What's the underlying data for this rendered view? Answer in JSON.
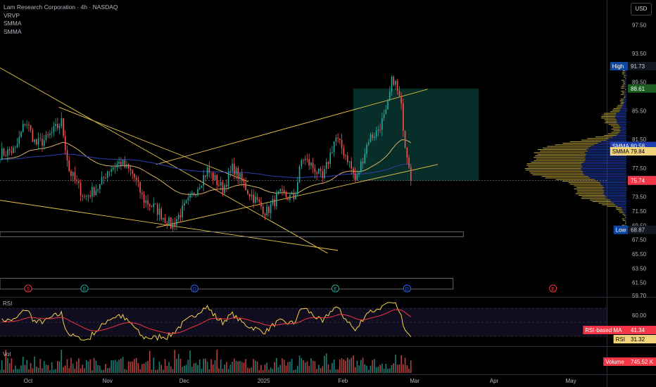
{
  "header": {
    "title": "Lam Research Corporation · 4h · NASDAQ",
    "indicators": [
      "VRVP",
      "SMMA",
      "SMMA"
    ]
  },
  "currency_button": "USD",
  "price_axis": {
    "ticks": [
      "97.50",
      "93.50",
      "89.50",
      "85.50",
      "81.50",
      "77.50",
      "73.50",
      "71.50",
      "69.50",
      "67.50",
      "65.50",
      "63.50",
      "61.50",
      "59.70"
    ]
  },
  "price_labels": [
    {
      "text": "High",
      "value": "91.73",
      "bg": "#131722",
      "fg": "#d1d4dc",
      "tagbg": "#0d47a1"
    },
    {
      "text": "",
      "value": "88.61",
      "bg": "#1b5e20",
      "fg": "#ffffff"
    },
    {
      "text": "SMMA",
      "value": "80.58",
      "bg": "#1e40af",
      "fg": "#ffffff"
    },
    {
      "text": "SMMA",
      "value": "79.84",
      "bg": "#f2d27a",
      "fg": "#000000"
    },
    {
      "text": "",
      "value": "75.81",
      "bg": "#f23645",
      "fg": "#ffffff"
    },
    {
      "text": "",
      "value": "75.75",
      "bg": "#1e53e5",
      "fg": "#ffffff"
    },
    {
      "text": "",
      "value": "75.74",
      "bg": "#f23645",
      "fg": "#ffffff"
    },
    {
      "text": "Low",
      "value": "68.87",
      "bg": "#131722",
      "fg": "#d1d4dc",
      "tagbg": "#0d47a1"
    }
  ],
  "rsi_pane": {
    "label": "RSI",
    "ticks": [
      "60.00",
      "40.00"
    ],
    "labels": [
      {
        "text": "RSI-based MA",
        "value": "41.34",
        "bg": "#f23645",
        "fg": "#ffffff"
      },
      {
        "text": "RSI",
        "value": "31.32",
        "bg": "#f2d27a",
        "fg": "#000000"
      }
    ]
  },
  "volume_pane": {
    "label": "Vol",
    "labels": [
      {
        "text": "Volume",
        "value": "745.52 K",
        "bg": "#f23645",
        "fg": "#ffffff"
      }
    ]
  },
  "time_axis": [
    "Oct",
    "Nov",
    "Dec",
    "2025",
    "Feb",
    "Mar",
    "Apr",
    "May"
  ],
  "event_markers": [
    {
      "letter": "S",
      "color": "#f23645",
      "date_index": 0
    },
    {
      "letter": "E",
      "color": "#26a69a",
      "date_index": 1
    },
    {
      "letter": "D",
      "color": "#2962ff",
      "date_index": 2
    },
    {
      "letter": "E",
      "color": "#26a69a",
      "date_index": 3
    },
    {
      "letter": "D",
      "color": "#2962ff",
      "date_index": 4
    },
    {
      "letter": "E",
      "color": "#f23645",
      "date_index": 5
    }
  ],
  "colors": {
    "up": "#26a69a",
    "down": "#ef5350",
    "smma_fast": "#d9b26a",
    "smma_slow": "#2b3fb5",
    "trend": "#e8c547",
    "rsi": "#f7d24a",
    "rsi_ma": "#f23645",
    "profile_blue": "#2046c8",
    "profile_yellow": "#e8c547"
  },
  "chart_data": [
    {
      "type": "candlestick",
      "title": "Lam Research Corporation · 4h · NASDAQ",
      "ylim": [
        59.7,
        99.0
      ],
      "y_scale": "linear",
      "x": [
        "2024-09-20",
        "2025-05-15"
      ],
      "anchors": [
        [
          "2024-09-20",
          79.5
        ],
        [
          "2024-09-26",
          80.0
        ],
        [
          "2024-09-30",
          84.2
        ],
        [
          "2024-10-04",
          80.8
        ],
        [
          "2024-10-08",
          81.5
        ],
        [
          "2024-10-14",
          83.9
        ],
        [
          "2024-10-17",
          77.2
        ],
        [
          "2024-10-23",
          73.4
        ],
        [
          "2024-10-29",
          75.0
        ],
        [
          "2024-11-01",
          77.2
        ],
        [
          "2024-11-06",
          78.3
        ],
        [
          "2024-11-11",
          76.6
        ],
        [
          "2024-11-15",
          73.1
        ],
        [
          "2024-11-20",
          71.8
        ],
        [
          "2024-11-26",
          69.4
        ],
        [
          "2024-12-03",
          73.0
        ],
        [
          "2024-12-06",
          74.8
        ],
        [
          "2024-12-10",
          77.2
        ],
        [
          "2024-12-16",
          74.6
        ],
        [
          "2024-12-20",
          77.6
        ],
        [
          "2024-12-26",
          74.2
        ],
        [
          "2025-01-02",
          71.3
        ],
        [
          "2025-01-07",
          73.8
        ],
        [
          "2025-01-13",
          73.3
        ],
        [
          "2025-01-16",
          79.0
        ],
        [
          "2025-01-21",
          77.4
        ],
        [
          "2025-01-24",
          75.9
        ],
        [
          "2025-01-29",
          81.8
        ],
        [
          "2025-02-03",
          78.7
        ],
        [
          "2025-02-06",
          75.6
        ],
        [
          "2025-02-11",
          81.6
        ],
        [
          "2025-02-14",
          82.5
        ],
        [
          "2025-02-18",
          85.2
        ],
        [
          "2025-02-20",
          89.5
        ],
        [
          "2025-02-21",
          90.0
        ],
        [
          "2025-02-24",
          85.5
        ],
        [
          "2025-02-25",
          81.4
        ],
        [
          "2025-02-27",
          77.8
        ],
        [
          "2025-02-28",
          75.75
        ]
      ],
      "last": 75.75,
      "high": 91.73,
      "low": 68.87
    },
    {
      "type": "line",
      "name": "RSI",
      "ylim": [
        20,
        80
      ],
      "last": 31.32,
      "ma_last": 41.34
    },
    {
      "type": "bar",
      "name": "Volume",
      "last": 745.52
    }
  ]
}
